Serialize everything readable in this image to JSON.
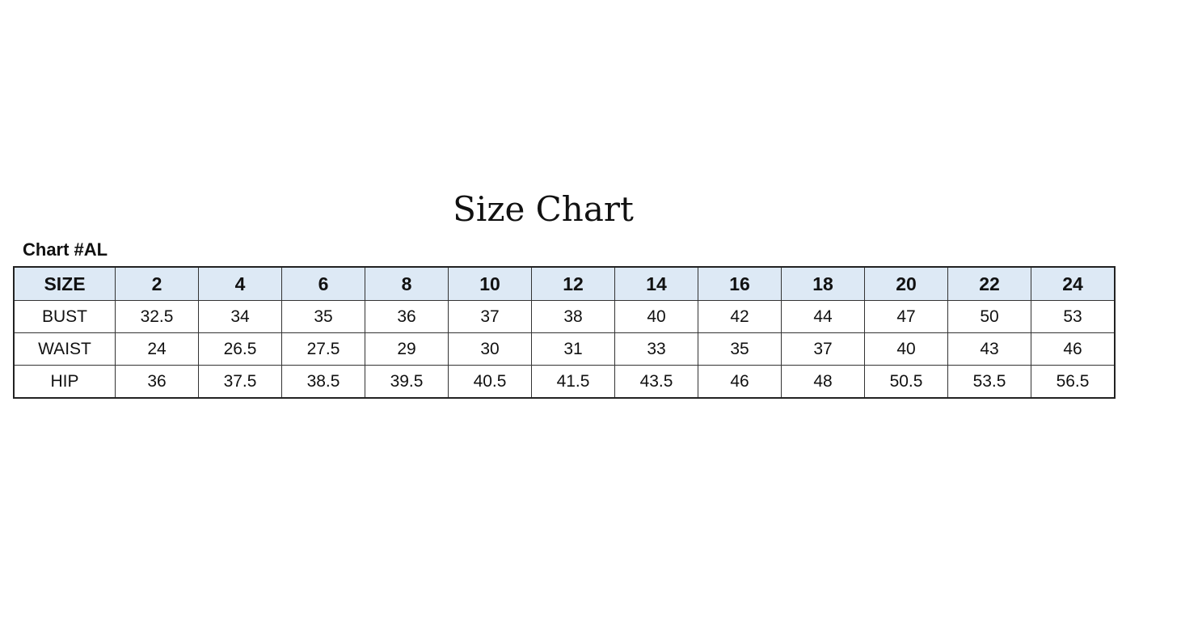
{
  "title": "Size Chart",
  "chart_label": "Chart #AL",
  "table": {
    "header_color": "#dde9f5",
    "columns": [
      "SIZE",
      "2",
      "4",
      "6",
      "8",
      "10",
      "12",
      "14",
      "16",
      "18",
      "20",
      "22",
      "24"
    ],
    "rows": [
      {
        "label": "BUST",
        "values": [
          "32.5",
          "34",
          "35",
          "36",
          "37",
          "38",
          "40",
          "42",
          "44",
          "47",
          "50",
          "53"
        ]
      },
      {
        "label": "WAIST",
        "values": [
          "24",
          "26.5",
          "27.5",
          "29",
          "30",
          "31",
          "33",
          "35",
          "37",
          "40",
          "43",
          "46"
        ]
      },
      {
        "label": "HIP",
        "values": [
          "36",
          "37.5",
          "38.5",
          "39.5",
          "40.5",
          "41.5",
          "43.5",
          "46",
          "48",
          "50.5",
          "53.5",
          "56.5"
        ]
      }
    ]
  }
}
